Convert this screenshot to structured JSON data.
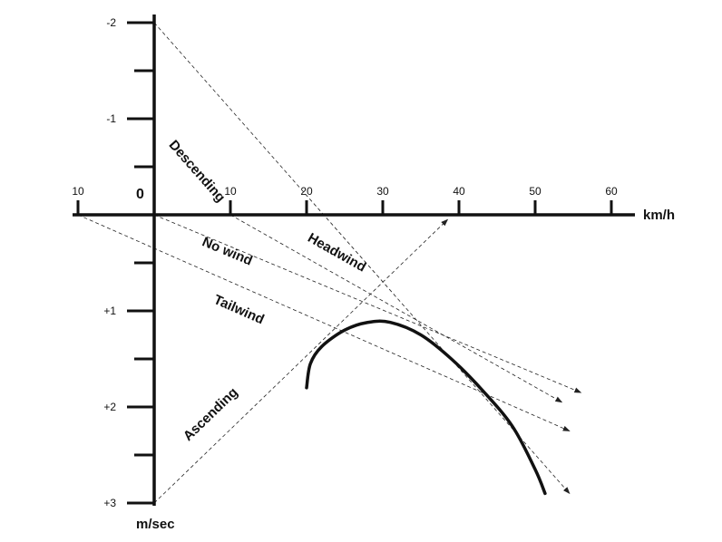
{
  "diagram": {
    "x_axis": {
      "unit": "km/h",
      "origin_label": "0",
      "ticks": [
        {
          "value": -10,
          "label": "10"
        },
        {
          "value": 10,
          "label": "10"
        },
        {
          "value": 20,
          "label": "20"
        },
        {
          "value": 30,
          "label": "30"
        },
        {
          "value": 40,
          "label": "40"
        },
        {
          "value": 50,
          "label": "50"
        },
        {
          "value": 60,
          "label": "60"
        }
      ]
    },
    "y_axis": {
      "unit": "m/sec",
      "ticks": [
        {
          "value": -2,
          "label": "-2"
        },
        {
          "value": -1,
          "label": "-1"
        },
        {
          "value": 1,
          "label": "+1"
        },
        {
          "value": 2,
          "label": "+2"
        },
        {
          "value": 3,
          "label": "+3"
        }
      ],
      "minor_step": 0.5
    },
    "polar_curve": [
      [
        20,
        1.8
      ],
      [
        20.5,
        1.55
      ],
      [
        22,
        1.37
      ],
      [
        25,
        1.2
      ],
      [
        28,
        1.12
      ],
      [
        31,
        1.12
      ],
      [
        35,
        1.25
      ],
      [
        39,
        1.5
      ],
      [
        43,
        1.82
      ],
      [
        47,
        2.2
      ],
      [
        50,
        2.65
      ],
      [
        51.3,
        2.9
      ]
    ],
    "lines": [
      {
        "id": "descending",
        "label": "Descending",
        "from": [
          0,
          -2
        ],
        "to": [
          54.5,
          2.9
        ],
        "arrow": true
      },
      {
        "id": "headwind",
        "label": "Headwind",
        "from": [
          10,
          0
        ],
        "to": [
          53.5,
          1.95
        ],
        "arrow": true
      },
      {
        "id": "no-wind",
        "label": "No wind",
        "from": [
          0,
          0
        ],
        "to": [
          56,
          1.85
        ],
        "arrow": true
      },
      {
        "id": "tailwind",
        "label": "Tailwind",
        "from": [
          -10,
          0
        ],
        "to": [
          54.5,
          2.25
        ],
        "arrow": true
      },
      {
        "id": "ascending",
        "label": "Ascending",
        "from": [
          0,
          3
        ],
        "to": [
          38.5,
          0.05
        ],
        "arrow": true
      }
    ]
  }
}
